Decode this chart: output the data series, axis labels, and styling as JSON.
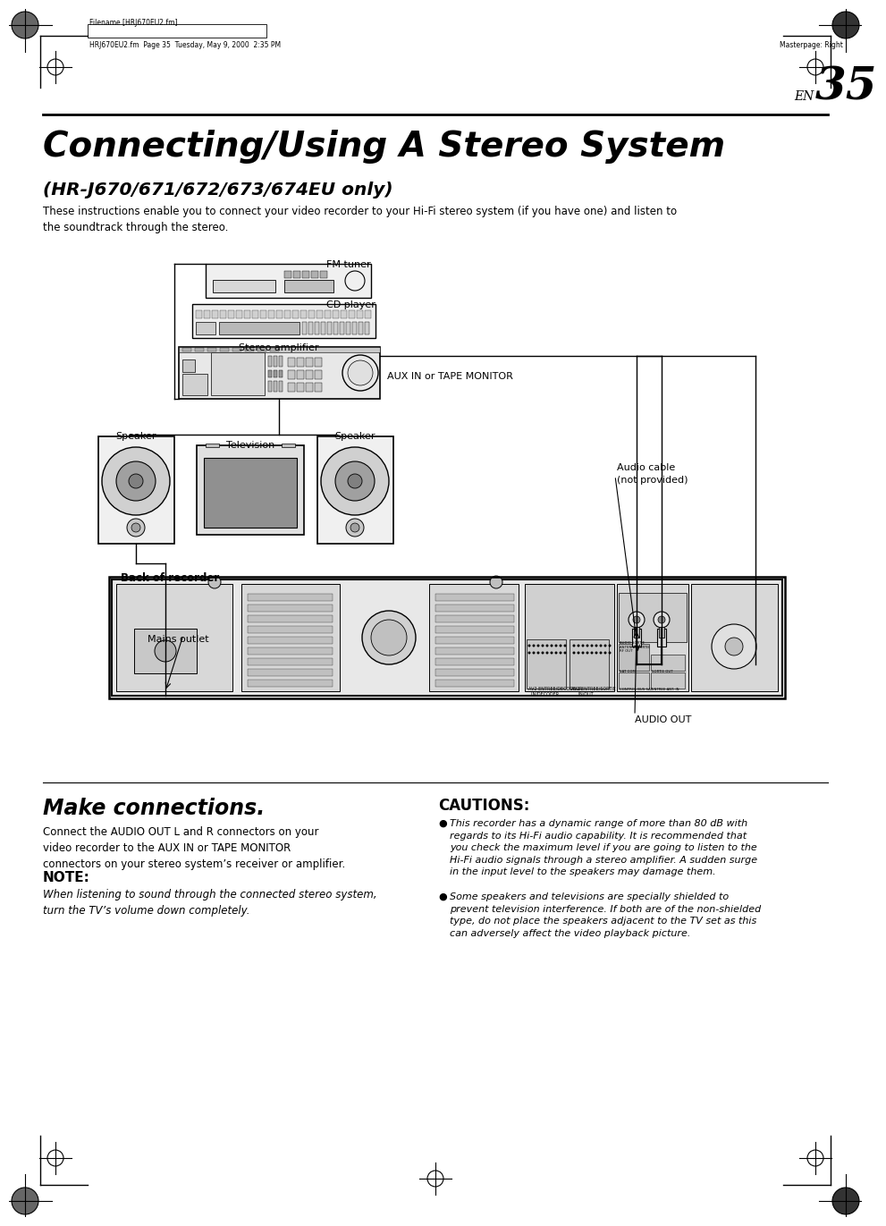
{
  "page_bg": "#ffffff",
  "page_num": "35",
  "header_filename": "Filename [HRJ670EU2.fm]",
  "header_path": "HRJ670EU2.fm  Page 35  Tuesday, May 9, 2000  2:35 PM",
  "header_masterpage": "Masterpage: Right",
  "title": "Connecting/Using A Stereo System",
  "subtitle": "(HR-J670/671/672/673/674EU only)",
  "intro_text": "These instructions enable you to connect your video recorder to your Hi-Fi stereo system (if you have one) and listen to\nthe soundtrack through the stereo.",
  "label_fm_tuner": "FM tuner",
  "label_cd_player": "CD player",
  "label_stereo_amp": "Stereo amplifier",
  "label_aux": "AUX IN or TAPE MONITOR",
  "label_speaker_left": "Speaker",
  "label_television": "Television",
  "label_speaker_right": "Speaker",
  "label_mains": "Mains outlet",
  "label_back": "Back of recorder",
  "label_audio_cable": "Audio cable\n(not provided)",
  "label_audio_out": "AUDIO OUT",
  "section_make": "Make connections.",
  "make_text": "Connect the AUDIO OUT L and R connectors on your\nvideo recorder to the AUX IN or TAPE MONITOR\nconnectors on your stereo system’s receiver or amplifier.",
  "note_title": "NOTE:",
  "note_text": "When listening to sound through the connected stereo system,\nturn the TV’s volume down completely.",
  "cautions_title": "CAUTIONS:",
  "caution1": "This recorder has a dynamic range of more than 80 dB with\nregards to its Hi-Fi audio capability. It is recommended that\nyou check the maximum level if you are going to listen to the\nHi-Fi audio signals through a stereo amplifier. A sudden surge\nin the input level to the speakers may damage them.",
  "caution2": "Some speakers and televisions are specially shielded to\nprevent television interference. If both are of the non-shielded\ntype, do not place the speakers adjacent to the TV set as this\ncan adversely affect the video playback picture."
}
